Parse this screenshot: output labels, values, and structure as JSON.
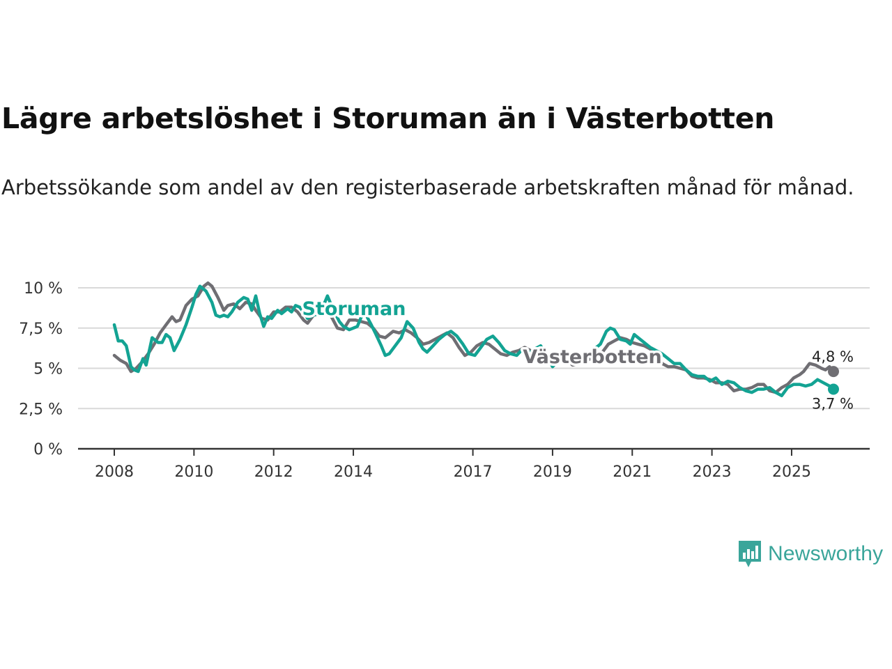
{
  "title": "Lägre arbetslöshet i Storuman än i Västerbotten",
  "subtitle": "Arbetssökande som andel av den registerbaserade arbetskraften månad för månad.",
  "brand": {
    "name": "Newsworthy",
    "color": "#3aa59a",
    "icon": "bar-chart-icon"
  },
  "chart_data": {
    "type": "line",
    "ylim": [
      0,
      10
    ],
    "yticks": [
      0,
      2.5,
      5,
      7.5,
      10
    ],
    "ytick_labels": [
      "0 %",
      "2,5 %",
      "5 %",
      "7,5 %",
      "10 %"
    ],
    "xlim": [
      2008,
      2026.6
    ],
    "xticks": [
      2008,
      2010,
      2012,
      2014,
      2017,
      2019,
      2021,
      2023,
      2025
    ],
    "xtick_labels": [
      "2008",
      "2010",
      "2012",
      "2014",
      "2017",
      "2019",
      "2021",
      "2023",
      "2025"
    ],
    "grid": true,
    "series": [
      {
        "name": "Västerbotten",
        "color": "#6f6e73",
        "end_label": "4,8 %",
        "points": [
          [
            2008.0,
            5.8
          ],
          [
            2008.15,
            5.5
          ],
          [
            2008.3,
            5.3
          ],
          [
            2008.42,
            4.8
          ],
          [
            2008.55,
            5.0
          ],
          [
            2008.7,
            5.4
          ],
          [
            2008.85,
            5.9
          ],
          [
            2009.0,
            6.5
          ],
          [
            2009.15,
            7.2
          ],
          [
            2009.3,
            7.7
          ],
          [
            2009.45,
            8.2
          ],
          [
            2009.55,
            7.9
          ],
          [
            2009.65,
            8.0
          ],
          [
            2009.8,
            8.9
          ],
          [
            2009.95,
            9.3
          ],
          [
            2010.1,
            9.5
          ],
          [
            2010.25,
            10.1
          ],
          [
            2010.35,
            10.3
          ],
          [
            2010.45,
            10.1
          ],
          [
            2010.6,
            9.4
          ],
          [
            2010.75,
            8.6
          ],
          [
            2010.85,
            8.9
          ],
          [
            2011.0,
            9.0
          ],
          [
            2011.15,
            8.7
          ],
          [
            2011.3,
            9.1
          ],
          [
            2011.45,
            9.0
          ],
          [
            2011.55,
            8.6
          ],
          [
            2011.7,
            8.1
          ],
          [
            2011.85,
            8.0
          ],
          [
            2012.0,
            8.5
          ],
          [
            2012.15,
            8.5
          ],
          [
            2012.3,
            8.8
          ],
          [
            2012.45,
            8.8
          ],
          [
            2012.6,
            8.5
          ],
          [
            2012.75,
            8.0
          ],
          [
            2012.85,
            7.8
          ],
          [
            2013.0,
            8.3
          ],
          [
            2013.15,
            8.4
          ],
          [
            2013.3,
            8.5
          ],
          [
            2013.45,
            8.2
          ],
          [
            2013.6,
            7.5
          ],
          [
            2013.75,
            7.4
          ],
          [
            2013.9,
            8.0
          ],
          [
            2014.05,
            8.0
          ],
          [
            2014.2,
            7.9
          ],
          [
            2014.35,
            7.8
          ],
          [
            2014.5,
            7.5
          ],
          [
            2014.65,
            7.0
          ],
          [
            2014.8,
            6.9
          ],
          [
            2015.0,
            7.3
          ],
          [
            2015.15,
            7.2
          ],
          [
            2015.3,
            7.4
          ],
          [
            2015.45,
            7.2
          ],
          [
            2015.6,
            6.9
          ],
          [
            2015.75,
            6.5
          ],
          [
            2015.9,
            6.6
          ],
          [
            2016.05,
            6.8
          ],
          [
            2016.2,
            7.0
          ],
          [
            2016.35,
            7.2
          ],
          [
            2016.5,
            6.9
          ],
          [
            2016.65,
            6.3
          ],
          [
            2016.8,
            5.8
          ],
          [
            2016.95,
            6.0
          ],
          [
            2017.1,
            6.4
          ],
          [
            2017.25,
            6.6
          ],
          [
            2017.4,
            6.5
          ],
          [
            2017.55,
            6.2
          ],
          [
            2017.7,
            5.9
          ],
          [
            2017.85,
            5.8
          ],
          [
            2018.0,
            6.0
          ],
          [
            2018.15,
            6.1
          ],
          [
            2018.3,
            6.3
          ],
          [
            2018.45,
            6.1
          ],
          [
            2018.6,
            5.8
          ],
          [
            2018.75,
            5.5
          ],
          [
            2018.9,
            5.5
          ],
          [
            2019.05,
            5.7
          ],
          [
            2019.2,
            5.8
          ],
          [
            2019.35,
            5.6
          ],
          [
            2019.5,
            5.2
          ],
          [
            2019.65,
            5.3
          ],
          [
            2019.8,
            5.4
          ],
          [
            2019.95,
            5.6
          ],
          [
            2020.1,
            5.9
          ],
          [
            2020.25,
            6.0
          ],
          [
            2020.4,
            6.5
          ],
          [
            2020.55,
            6.7
          ],
          [
            2020.7,
            6.9
          ],
          [
            2020.85,
            6.8
          ],
          [
            2021.0,
            6.6
          ],
          [
            2021.15,
            6.5
          ],
          [
            2021.3,
            6.4
          ],
          [
            2021.45,
            6.2
          ],
          [
            2021.6,
            5.9
          ],
          [
            2021.75,
            5.3
          ],
          [
            2021.9,
            5.1
          ],
          [
            2022.05,
            5.1
          ],
          [
            2022.2,
            5.0
          ],
          [
            2022.35,
            4.9
          ],
          [
            2022.5,
            4.5
          ],
          [
            2022.65,
            4.4
          ],
          [
            2022.8,
            4.4
          ],
          [
            2022.95,
            4.3
          ],
          [
            2023.1,
            4.1
          ],
          [
            2023.25,
            4.1
          ],
          [
            2023.4,
            4.0
          ],
          [
            2023.55,
            3.6
          ],
          [
            2023.7,
            3.7
          ],
          [
            2023.85,
            3.7
          ],
          [
            2024.0,
            3.8
          ],
          [
            2024.15,
            4.0
          ],
          [
            2024.3,
            4.0
          ],
          [
            2024.45,
            3.6
          ],
          [
            2024.6,
            3.5
          ],
          [
            2024.75,
            3.8
          ],
          [
            2024.9,
            4.0
          ],
          [
            2025.05,
            4.4
          ],
          [
            2025.2,
            4.6
          ],
          [
            2025.3,
            4.8
          ],
          [
            2025.45,
            5.3
          ],
          [
            2025.6,
            5.2
          ],
          [
            2025.75,
            5.0
          ],
          [
            2025.85,
            4.9
          ],
          [
            2025.95,
            5.1
          ],
          [
            2026.05,
            4.8
          ]
        ]
      },
      {
        "name": "Storuman",
        "color": "#13a393",
        "end_label": "3,7 %",
        "points": [
          [
            2008.0,
            7.7
          ],
          [
            2008.1,
            6.7
          ],
          [
            2008.2,
            6.7
          ],
          [
            2008.3,
            6.4
          ],
          [
            2008.42,
            5.1
          ],
          [
            2008.5,
            4.9
          ],
          [
            2008.6,
            4.8
          ],
          [
            2008.72,
            5.6
          ],
          [
            2008.8,
            5.2
          ],
          [
            2008.95,
            6.9
          ],
          [
            2009.1,
            6.6
          ],
          [
            2009.2,
            6.6
          ],
          [
            2009.3,
            7.1
          ],
          [
            2009.4,
            6.9
          ],
          [
            2009.5,
            6.1
          ],
          [
            2009.65,
            6.8
          ],
          [
            2009.8,
            7.7
          ],
          [
            2009.95,
            8.8
          ],
          [
            2010.05,
            9.6
          ],
          [
            2010.15,
            10.1
          ],
          [
            2010.3,
            9.8
          ],
          [
            2010.45,
            9.1
          ],
          [
            2010.55,
            8.3
          ],
          [
            2010.65,
            8.2
          ],
          [
            2010.75,
            8.3
          ],
          [
            2010.85,
            8.2
          ],
          [
            2010.95,
            8.5
          ],
          [
            2011.1,
            9.1
          ],
          [
            2011.25,
            9.4
          ],
          [
            2011.35,
            9.3
          ],
          [
            2011.45,
            8.6
          ],
          [
            2011.55,
            9.5
          ],
          [
            2011.65,
            8.4
          ],
          [
            2011.75,
            7.6
          ],
          [
            2011.85,
            8.2
          ],
          [
            2011.95,
            8.1
          ],
          [
            2012.1,
            8.6
          ],
          [
            2012.2,
            8.4
          ],
          [
            2012.35,
            8.7
          ],
          [
            2012.45,
            8.5
          ],
          [
            2012.55,
            8.9
          ],
          [
            2012.65,
            8.8
          ],
          [
            2012.75,
            8.5
          ],
          [
            2012.85,
            8.1
          ],
          [
            2013.0,
            8.3
          ],
          [
            2013.15,
            8.4
          ],
          [
            2013.25,
            8.9
          ],
          [
            2013.35,
            9.5
          ],
          [
            2013.45,
            8.9
          ],
          [
            2013.55,
            8.4
          ],
          [
            2013.65,
            7.9
          ],
          [
            2013.75,
            7.6
          ],
          [
            2013.9,
            7.4
          ],
          [
            2014.0,
            7.5
          ],
          [
            2014.1,
            7.6
          ],
          [
            2014.2,
            8.2
          ],
          [
            2014.3,
            8.4
          ],
          [
            2014.45,
            7.7
          ],
          [
            2014.55,
            7.2
          ],
          [
            2014.7,
            6.4
          ],
          [
            2014.8,
            5.8
          ],
          [
            2014.9,
            5.9
          ],
          [
            2015.05,
            6.4
          ],
          [
            2015.2,
            6.9
          ],
          [
            2015.35,
            7.9
          ],
          [
            2015.5,
            7.5
          ],
          [
            2015.65,
            6.6
          ],
          [
            2015.75,
            6.2
          ],
          [
            2015.85,
            6.0
          ],
          [
            2016.0,
            6.4
          ],
          [
            2016.15,
            6.8
          ],
          [
            2016.3,
            7.1
          ],
          [
            2016.45,
            7.3
          ],
          [
            2016.6,
            7.0
          ],
          [
            2016.75,
            6.5
          ],
          [
            2016.9,
            5.9
          ],
          [
            2017.05,
            5.8
          ],
          [
            2017.2,
            6.3
          ],
          [
            2017.35,
            6.8
          ],
          [
            2017.5,
            7.0
          ],
          [
            2017.65,
            6.6
          ],
          [
            2017.8,
            6.1
          ],
          [
            2017.95,
            5.9
          ],
          [
            2018.1,
            5.8
          ],
          [
            2018.25,
            6.2
          ],
          [
            2018.4,
            5.9
          ],
          [
            2018.55,
            6.2
          ],
          [
            2018.7,
            6.4
          ],
          [
            2018.85,
            5.8
          ],
          [
            2019.0,
            5.1
          ],
          [
            2019.15,
            5.5
          ],
          [
            2019.3,
            5.8
          ],
          [
            2019.45,
            5.6
          ],
          [
            2019.6,
            5.3
          ],
          [
            2019.75,
            5.4
          ],
          [
            2019.9,
            5.7
          ],
          [
            2020.05,
            6.2
          ],
          [
            2020.2,
            6.5
          ],
          [
            2020.35,
            7.3
          ],
          [
            2020.45,
            7.5
          ],
          [
            2020.55,
            7.4
          ],
          [
            2020.7,
            6.8
          ],
          [
            2020.85,
            6.7
          ],
          [
            2020.95,
            6.5
          ],
          [
            2021.05,
            7.1
          ],
          [
            2021.15,
            6.9
          ],
          [
            2021.3,
            6.6
          ],
          [
            2021.45,
            6.3
          ],
          [
            2021.6,
            6.1
          ],
          [
            2021.75,
            5.9
          ],
          [
            2021.9,
            5.6
          ],
          [
            2022.05,
            5.3
          ],
          [
            2022.2,
            5.3
          ],
          [
            2022.35,
            4.9
          ],
          [
            2022.5,
            4.6
          ],
          [
            2022.65,
            4.5
          ],
          [
            2022.8,
            4.5
          ],
          [
            2022.95,
            4.2
          ],
          [
            2023.1,
            4.4
          ],
          [
            2023.25,
            4.0
          ],
          [
            2023.4,
            4.2
          ],
          [
            2023.55,
            4.1
          ],
          [
            2023.7,
            3.8
          ],
          [
            2023.85,
            3.6
          ],
          [
            2024.0,
            3.5
          ],
          [
            2024.15,
            3.7
          ],
          [
            2024.3,
            3.7
          ],
          [
            2024.45,
            3.8
          ],
          [
            2024.6,
            3.5
          ],
          [
            2024.75,
            3.3
          ],
          [
            2024.9,
            3.8
          ],
          [
            2025.05,
            4.0
          ],
          [
            2025.2,
            4.0
          ],
          [
            2025.35,
            3.9
          ],
          [
            2025.5,
            4.0
          ],
          [
            2025.65,
            4.3
          ],
          [
            2025.8,
            4.1
          ],
          [
            2025.95,
            3.9
          ],
          [
            2026.05,
            3.7
          ]
        ]
      }
    ]
  }
}
